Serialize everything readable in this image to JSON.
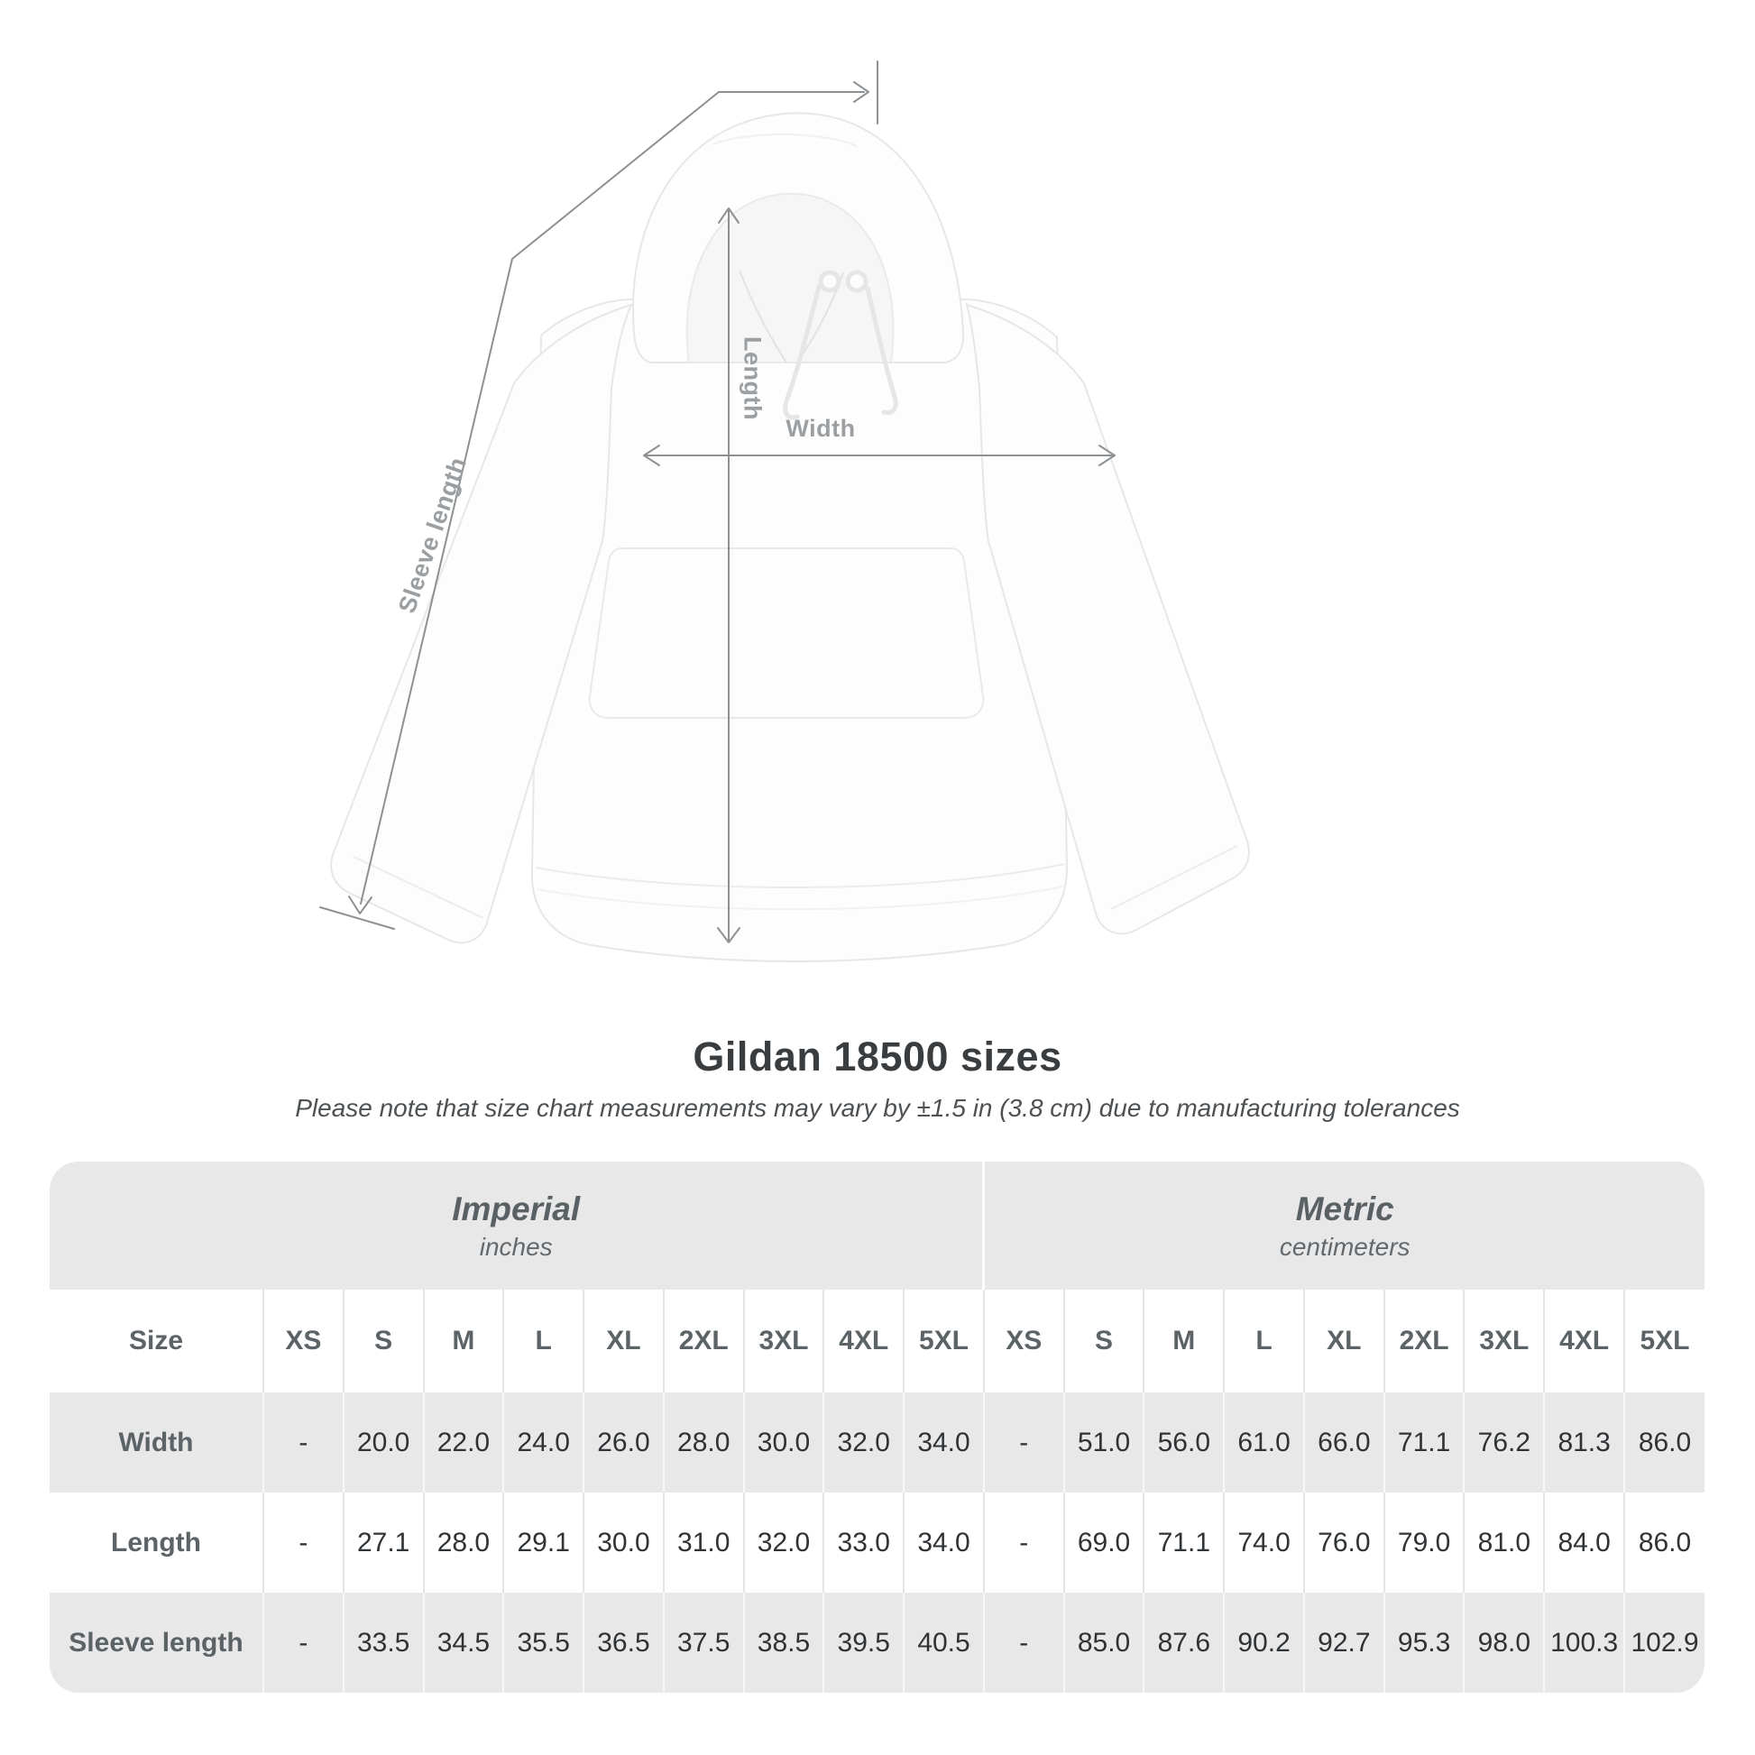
{
  "title": "Gildan 18500 sizes",
  "note": "Please note that size chart measurements may vary by ±1.5 in (3.8 cm) due to manufacturing tolerances",
  "diagram": {
    "length_label": "Length",
    "width_label": "Width",
    "sleeve_label": "Sleeve length"
  },
  "chart_data": {
    "type": "table",
    "title": "Gildan 18500 sizes",
    "sections": [
      {
        "name": "Imperial",
        "unit": "inches",
        "colspan": 10
      },
      {
        "name": "Metric",
        "unit": "centimeters",
        "colspan": 9
      }
    ],
    "header": [
      "Size",
      "XS",
      "S",
      "M",
      "L",
      "XL",
      "2XL",
      "3XL",
      "4XL",
      "5XL",
      "XS",
      "S",
      "M",
      "L",
      "XL",
      "2XL",
      "3XL",
      "4XL",
      "5XL"
    ],
    "rows": [
      [
        "Width",
        "-",
        "20.0",
        "22.0",
        "24.0",
        "26.0",
        "28.0",
        "30.0",
        "32.0",
        "34.0",
        "-",
        "51.0",
        "56.0",
        "61.0",
        "66.0",
        "71.1",
        "76.2",
        "81.3",
        "86.0"
      ],
      [
        "Length",
        "-",
        "27.1",
        "28.0",
        "29.1",
        "30.0",
        "31.0",
        "32.0",
        "33.0",
        "34.0",
        "-",
        "69.0",
        "71.1",
        "74.0",
        "76.0",
        "79.0",
        "81.0",
        "84.0",
        "86.0"
      ],
      [
        "Sleeve length",
        "-",
        "33.5",
        "34.5",
        "35.5",
        "36.5",
        "37.5",
        "38.5",
        "39.5",
        "40.5",
        "-",
        "85.0",
        "87.6",
        "90.2",
        "92.7",
        "95.3",
        "98.0",
        "100.3",
        "102.9"
      ]
    ]
  },
  "colors": {
    "table_band": "#e8e8e8",
    "header_text": "#5c6367",
    "value_text": "#303336",
    "measure_line": "#8d9194",
    "measure_label": "#9b9fa2",
    "title_text": "#3a3d40"
  }
}
